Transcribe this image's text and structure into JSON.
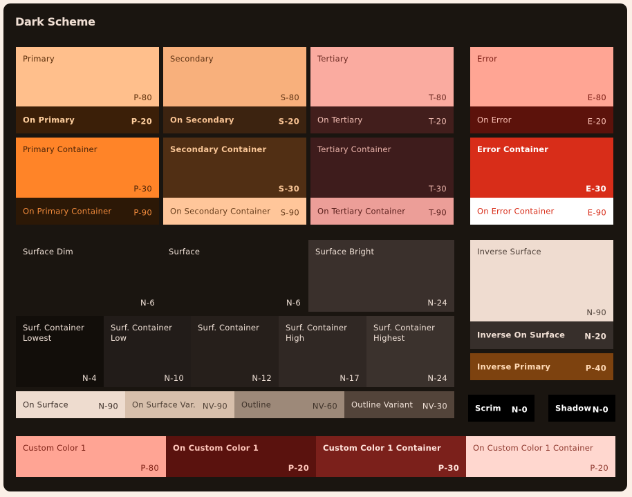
{
  "title": "Dark Scheme",
  "swatches": {
    "primary": {
      "name": "Primary",
      "code": "P-80",
      "bg": "#ffbf8c",
      "fg": "#5b2e0a"
    },
    "on_primary": {
      "name": "On Primary",
      "code": "P-20",
      "bg": "#3b1f08",
      "fg": "#ffcf9e"
    },
    "primary_container": {
      "name": "Primary Container",
      "code": "P-30",
      "bg": "#ff8428",
      "fg": "#4a2308"
    },
    "on_primary_container": {
      "name": "On Primary Container",
      "code": "P-90",
      "bg": "#2c1806",
      "fg": "#f08a3c"
    },
    "secondary": {
      "name": "Secondary",
      "code": "S-80",
      "bg": "#f8b07c",
      "fg": "#5e3314"
    },
    "on_secondary": {
      "name": "On Secondary",
      "code": "S-20",
      "bg": "#3c2310",
      "fg": "#f9c393"
    },
    "secondary_container": {
      "name": "Secondary Container",
      "code": "S-30",
      "bg": "#512f14",
      "fg": "#f8c596"
    },
    "on_secondary_container": {
      "name": "On Secondary Container",
      "code": "S-90",
      "bg": "#ffc69a",
      "fg": "#6a401e"
    },
    "tertiary": {
      "name": "Tertiary",
      "code": "T-80",
      "bg": "#faaba0",
      "fg": "#6a2a22"
    },
    "on_tertiary": {
      "name": "On Tertiary",
      "code": "T-20",
      "bg": "#421e1c",
      "fg": "#f4bfb5"
    },
    "tertiary_container": {
      "name": "Tertiary Container",
      "code": "T-30",
      "bg": "#3e1c1c",
      "fg": "#eab3aa"
    },
    "on_tertiary_container": {
      "name": "On Tertiary Container",
      "code": "T-90",
      "bg": "#ec9e98",
      "fg": "#5a201d"
    },
    "error": {
      "name": "Error",
      "code": "E-80",
      "bg": "#ffa594",
      "fg": "#7a1b12"
    },
    "on_error": {
      "name": "On Error",
      "code": "E-20",
      "bg": "#5c120b",
      "fg": "#ffc4b8"
    },
    "error_container": {
      "name": "Error Container",
      "code": "E-30",
      "bg": "#d82d19",
      "fg": "#ffffff"
    },
    "on_error_container": {
      "name": "On Error Container",
      "code": "E-90",
      "bg": "#ffffff",
      "fg": "#d82d19"
    },
    "surface_dim": {
      "name": "Surface Dim",
      "code": "N-6",
      "bg": "#1a1510",
      "fg": "#efe0d6"
    },
    "surface": {
      "name": "Surface",
      "code": "N-6",
      "bg": "#1a1510",
      "fg": "#efe0d6"
    },
    "surface_bright": {
      "name": "Surface Bright",
      "code": "N-24",
      "bg": "#3a302c",
      "fg": "#efe0d6"
    },
    "surf_container_lowest": {
      "name": "Surf. Container Lowest",
      "code": "N-4",
      "bg": "#120e0a",
      "fg": "#efe0d6"
    },
    "surf_container_low": {
      "name": "Surf. Container Low",
      "code": "N-10",
      "bg": "#221c19",
      "fg": "#efe0d6"
    },
    "surf_container": {
      "name": "Surf. Container",
      "code": "N-12",
      "bg": "#261f1b",
      "fg": "#efe0d6"
    },
    "surf_container_high": {
      "name": "Surf. Container High",
      "code": "N-17",
      "bg": "#302824",
      "fg": "#efe0d6"
    },
    "surf_container_highest": {
      "name": "Surf. Container Highest",
      "code": "N-24",
      "bg": "#3b322d",
      "fg": "#efe0d6"
    },
    "on_surface": {
      "name": "On Surface",
      "code": "N-90",
      "bg": "#eedccf",
      "fg": "#3d302a"
    },
    "on_surface_var": {
      "name": "On Surface Var.",
      "code": "NV-90",
      "bg": "#d7bfab",
      "fg": "#4f4035"
    },
    "outline": {
      "name": "Outline",
      "code": "NV-60",
      "bg": "#9d8979",
      "fg": "#3e3229"
    },
    "outline_variant": {
      "name": "Outline Variant",
      "code": "NV-30",
      "bg": "#53443a",
      "fg": "#efe0d6"
    },
    "inverse_surface": {
      "name": "Inverse Surface",
      "code": "N-90",
      "bg": "#efdcd0",
      "fg": "#4d3f37"
    },
    "inverse_on_surface": {
      "name": "Inverse On Surface",
      "code": "N-20",
      "bg": "#372f2b",
      "fg": "#f2e1d6"
    },
    "inverse_primary": {
      "name": "Inverse Primary",
      "code": "P-40",
      "bg": "#7d420f",
      "fg": "#ffd9b5"
    },
    "scrim": {
      "name": "Scrim",
      "code": "N-0",
      "bg": "#000000",
      "fg": "#ffffff"
    },
    "shadow": {
      "name": "Shadow",
      "code": "N-0",
      "bg": "#000000",
      "fg": "#ffffff"
    },
    "custom_color_1": {
      "name": "Custom Color 1",
      "code": "P-80",
      "bg": "#ffa494",
      "fg": "#7b1f14"
    },
    "on_custom_color_1": {
      "name": "On Custom Color 1",
      "code": "P-20",
      "bg": "#5a120e",
      "fg": "#ffc6ba"
    },
    "custom_color_1_container": {
      "name": "Custom Color 1 Container",
      "code": "P-30",
      "bg": "#7b201b",
      "fg": "#ffe2da"
    },
    "on_custom_color_1_container": {
      "name": "On Custom Color 1 Container",
      "code": "P-20",
      "bg": "#ffd7cf",
      "fg": "#8f3a30"
    }
  }
}
